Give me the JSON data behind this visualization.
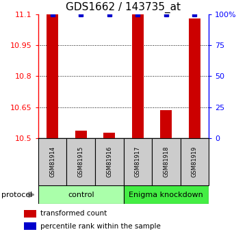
{
  "title": "GDS1662 / 143735_at",
  "samples": [
    "GSM81914",
    "GSM81915",
    "GSM81916",
    "GSM81917",
    "GSM81918",
    "GSM81919"
  ],
  "red_values": [
    11.1,
    10.535,
    10.525,
    11.1,
    10.635,
    11.08
  ],
  "blue_values": [
    100,
    100,
    100,
    100,
    100,
    100
  ],
  "ymin": 10.5,
  "ymax": 11.1,
  "yticks": [
    10.5,
    10.65,
    10.8,
    10.95,
    11.1
  ],
  "right_yticks": [
    0,
    25,
    50,
    75,
    100
  ],
  "right_yticklabels": [
    "0",
    "25",
    "50",
    "75",
    "100%"
  ],
  "groups": [
    {
      "label": "control",
      "indices": [
        0,
        1,
        2
      ],
      "color": "#aaffaa"
    },
    {
      "label": "Enigma knockdown",
      "indices": [
        3,
        4,
        5
      ],
      "color": "#44ee44"
    }
  ],
  "protocol_label": "protocol",
  "legend_items": [
    {
      "color": "#cc0000",
      "label": "transformed count"
    },
    {
      "color": "#0000cc",
      "label": "percentile rank within the sample"
    }
  ],
  "bar_color": "#cc0000",
  "dot_color": "#0000cc",
  "bar_base": 10.5,
  "sample_box_color": "#cccccc",
  "title_fontsize": 11,
  "tick_fontsize": 8,
  "legend_fontsize": 7.5
}
